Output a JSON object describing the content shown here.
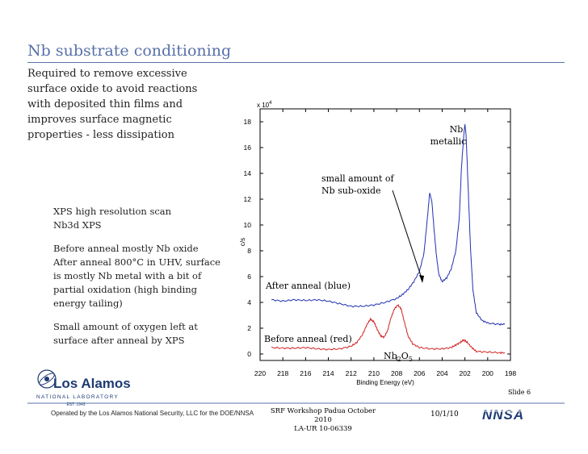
{
  "slide": {
    "title": "Nb substrate conditioning",
    "intro": "Required to remove excessive\nsurface oxide to avoid reactions\nwith deposited thin films and\nimproves surface magnetic\nproperties - less dissipation",
    "notes": [
      "XPS high resolution scan",
      "Nb3d XPS",
      "",
      "Before anneal mostly Nb oxide",
      "After anneal 800°C in UHV, surface",
      "is mostly Nb metal with a bit of",
      "partial oxidation (high binding",
      "energy tailing)",
      "",
      "Small amount of oxygen left at",
      "surface after anneal by XPS"
    ],
    "footer": {
      "operated_by": "Operated by the Los Alamos National Security, LLC for the DOE/NNSA",
      "workshop": "SRF Workshop Padua October 2010",
      "report": "LA-UR 10-06339",
      "date": "10/1/10",
      "slide_number": "Slide 6"
    },
    "logos": {
      "lanl_name": "Los Alamos",
      "lanl_sub": "NATIONAL LABORATORY",
      "lanl_est": "EST. 1943",
      "nnsa": "NNSA"
    }
  },
  "chart_data": {
    "type": "line",
    "xlabel": "Binding Energy (eV)",
    "ylabel": "c/s",
    "y_multiplier": "x 10^4",
    "xlim": [
      220,
      198
    ],
    "ylim": [
      -0.5,
      19
    ],
    "x_ticks": [
      220,
      218,
      216,
      214,
      212,
      210,
      208,
      206,
      204,
      202,
      200,
      198
    ],
    "y_ticks": [
      0,
      2,
      4,
      6,
      8,
      10,
      12,
      14,
      16,
      18
    ],
    "grid": false,
    "annotations": {
      "nb_metallic": [
        "Nb",
        "metallic"
      ],
      "suboxide": [
        "small amount of",
        "Nb sub-oxide"
      ],
      "after": "After anneal (blue)",
      "before": "Before anneal (red)",
      "nb2o5": "Nb2O5"
    },
    "series": [
      {
        "color": "#2030b0",
        "points": [
          [
            219,
            4.2
          ],
          [
            218,
            4.1
          ],
          [
            217,
            4.2
          ],
          [
            216,
            4.15
          ],
          [
            215,
            4.2
          ],
          [
            214,
            4.1
          ],
          [
            213,
            3.9
          ],
          [
            212,
            3.7
          ],
          [
            211,
            3.7
          ],
          [
            210,
            3.8
          ],
          [
            209,
            4.0
          ],
          [
            208,
            4.3
          ],
          [
            207.5,
            4.6
          ],
          [
            207,
            5.0
          ],
          [
            206.5,
            5.6
          ],
          [
            206,
            6.4
          ],
          [
            205.6,
            7.8
          ],
          [
            205.3,
            10.5
          ],
          [
            205.1,
            12.5
          ],
          [
            204.9,
            11.8
          ],
          [
            204.7,
            9.5
          ],
          [
            204.5,
            7.6
          ],
          [
            204.3,
            6.2
          ],
          [
            204,
            5.6
          ],
          [
            203.6,
            5.9
          ],
          [
            203.2,
            6.6
          ],
          [
            202.8,
            8.0
          ],
          [
            202.5,
            10.5
          ],
          [
            202.3,
            14.5
          ],
          [
            202.1,
            17.0
          ],
          [
            202,
            17.8
          ],
          [
            201.9,
            17.0
          ],
          [
            201.7,
            12.5
          ],
          [
            201.5,
            8.0
          ],
          [
            201.3,
            5.0
          ],
          [
            201,
            3.2
          ],
          [
            200.5,
            2.6
          ],
          [
            200,
            2.4
          ],
          [
            199,
            2.3
          ],
          [
            198.5,
            2.3
          ]
        ]
      },
      {
        "color": "#d02020",
        "points": [
          [
            219,
            0.5
          ],
          [
            218,
            0.45
          ],
          [
            217,
            0.45
          ],
          [
            216,
            0.5
          ],
          [
            215,
            0.4
          ],
          [
            214,
            0.35
          ],
          [
            213,
            0.4
          ],
          [
            212,
            0.6
          ],
          [
            211.5,
            0.9
          ],
          [
            211,
            1.5
          ],
          [
            210.6,
            2.3
          ],
          [
            210.3,
            2.7
          ],
          [
            210,
            2.5
          ],
          [
            209.7,
            1.9
          ],
          [
            209.4,
            1.4
          ],
          [
            209.1,
            1.3
          ],
          [
            208.8,
            1.8
          ],
          [
            208.5,
            2.8
          ],
          [
            208.2,
            3.5
          ],
          [
            207.9,
            3.8
          ],
          [
            207.6,
            3.5
          ],
          [
            207.3,
            2.4
          ],
          [
            207,
            1.4
          ],
          [
            206.6,
            0.8
          ],
          [
            206,
            0.5
          ],
          [
            205,
            0.4
          ],
          [
            204,
            0.4
          ],
          [
            203.2,
            0.5
          ],
          [
            202.8,
            0.7
          ],
          [
            202.4,
            0.9
          ],
          [
            202.1,
            1.1
          ],
          [
            201.8,
            0.9
          ],
          [
            201.4,
            0.5
          ],
          [
            201,
            0.2
          ],
          [
            200,
            0.15
          ],
          [
            199,
            0.1
          ],
          [
            198.5,
            0.1
          ]
        ]
      }
    ]
  }
}
